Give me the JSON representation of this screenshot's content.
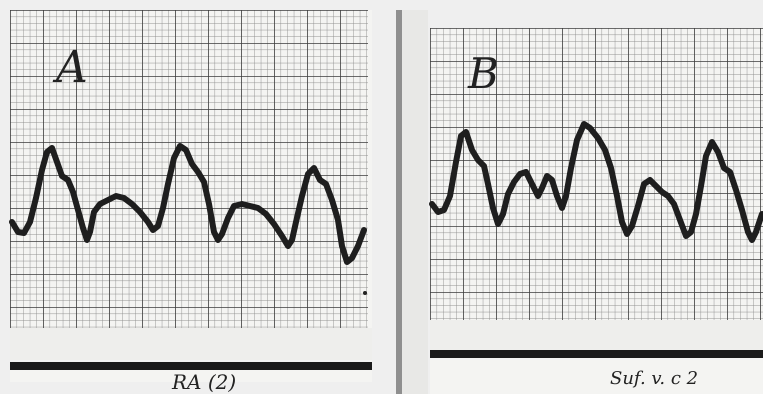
{
  "panels": [
    {
      "id": "A",
      "letter": "A",
      "caption": "RA (2)"
    },
    {
      "id": "B",
      "letter": "B",
      "caption": "Suf. v. c 2"
    }
  ],
  "colors": {
    "paper": "#f4f4f2",
    "grid_minor": "#8d8d8d",
    "grid_major": "#3c3c3c",
    "trace": "#1e1e1e",
    "divider": "#8f8f8f"
  }
}
